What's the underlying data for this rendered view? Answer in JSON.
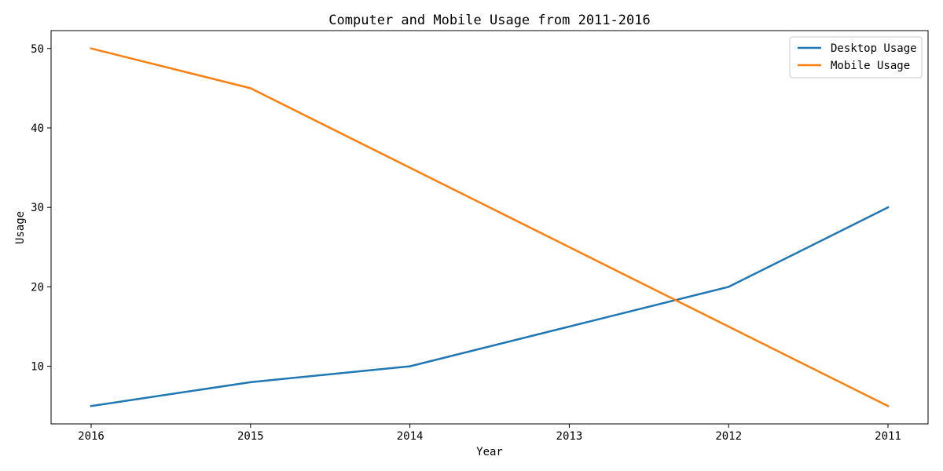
{
  "chart_data": {
    "type": "line",
    "title": "Computer and Mobile Usage from 2011-2016",
    "xlabel": "Year",
    "ylabel": "Usage",
    "categories": [
      "2016",
      "2015",
      "2014",
      "2013",
      "2012",
      "2011"
    ],
    "series": [
      {
        "name": "Desktop Usage",
        "color": "#1f77b4",
        "values": [
          5,
          8,
          10,
          15,
          20,
          30
        ]
      },
      {
        "name": "Mobile Usage",
        "color": "#ff7f0e",
        "values": [
          50,
          45,
          35,
          25,
          15,
          5
        ]
      }
    ],
    "yticks": [
      10,
      20,
      30,
      40,
      50
    ],
    "ylim": [
      2.75,
      52.25
    ],
    "grid": false,
    "legend_position": "top-right"
  }
}
